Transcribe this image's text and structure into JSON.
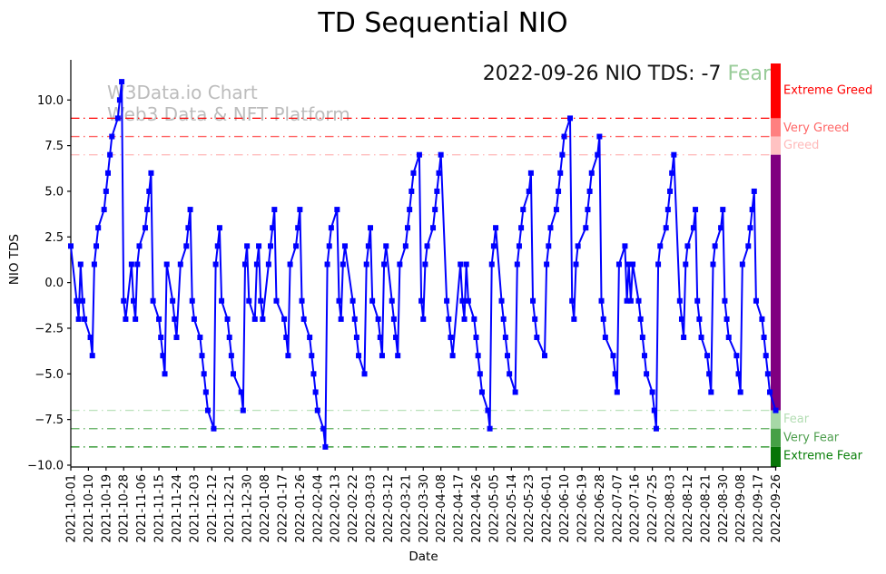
{
  "title": "TD Sequential NIO",
  "watermark": {
    "line1": "W3Data.io Chart",
    "line2": "Web3 Data & NFT Platform"
  },
  "annotation": {
    "prefix": "2022-09-26 NIO TDS: -7",
    "status": "Fear",
    "status_color": "#99cc99"
  },
  "chart_data": {
    "type": "line",
    "title": "TD Sequential NIO",
    "xlabel": "Date",
    "ylabel": "NIO TDS",
    "ylim": [
      -10.1,
      12.0
    ],
    "x_start": "2021-10-01",
    "x_end": "2022-09-26",
    "grid": false,
    "line_color": "#0000ff",
    "marker": "square",
    "y_tick_labels": [
      "10.0",
      "7.5",
      "5.0",
      "2.5",
      "0.0",
      "−2.5",
      "−5.0",
      "−7.5",
      "−10.0"
    ],
    "y_ticks": [
      10,
      7.5,
      5,
      2.5,
      0,
      -2.5,
      -5,
      -7.5,
      -10
    ],
    "x_tick_labels": [
      "2021-10-01",
      "2021-10-10",
      "2021-10-19",
      "2021-10-28",
      "2021-11-06",
      "2021-11-15",
      "2021-11-24",
      "2021-12-03",
      "2021-12-12",
      "2021-12-21",
      "2021-12-30",
      "2022-01-08",
      "2022-01-17",
      "2022-01-26",
      "2022-02-04",
      "2022-02-13",
      "2022-02-22",
      "2022-03-03",
      "2022-03-12",
      "2022-03-21",
      "2022-03-30",
      "2022-04-08",
      "2022-04-17",
      "2022-04-26",
      "2022-05-05",
      "2022-05-14",
      "2022-05-23",
      "2022-06-01",
      "2022-06-10",
      "2022-06-19",
      "2022-06-28",
      "2022-07-07",
      "2022-07-16",
      "2022-07-25",
      "2022-08-03",
      "2022-08-12",
      "2022-08-21",
      "2022-08-30",
      "2022-09-08",
      "2022-09-17",
      "2022-09-26"
    ],
    "zones": [
      {
        "value": 9,
        "label": "Extreme Greed",
        "label_value": 10.55,
        "line_color": "#ff0000",
        "text_color": "#ff0000"
      },
      {
        "value": 8,
        "label": "Very Greed",
        "label_value": 8.5,
        "line_color": "#ff6666",
        "text_color": "#ff6666"
      },
      {
        "value": 7,
        "label": "Greed",
        "label_value": 7.55,
        "line_color": "#ffbdbd",
        "text_color": "#ffb9b9"
      },
      {
        "value": -7,
        "label": "Fear",
        "label_value": -7.45,
        "line_color": "#bfe3bf",
        "text_color": "#b3ddb3"
      },
      {
        "value": -8,
        "label": "Very Fear",
        "label_value": -8.45,
        "line_color": "#5fae5f",
        "text_color": "#4d9e4d"
      },
      {
        "value": -9,
        "label": "Extreme Fear",
        "label_value": -9.45,
        "line_color": "#178a17",
        "text_color": "#0a800a"
      }
    ],
    "colorbar_segments": [
      {
        "from": 12.0,
        "to": 9,
        "color": "#ff0000"
      },
      {
        "from": 9,
        "to": 8,
        "color": "#ff8080"
      },
      {
        "from": 8,
        "to": 7,
        "color": "#ffc2c2"
      },
      {
        "from": 7,
        "to": -7,
        "color": "#800080"
      },
      {
        "from": -7,
        "to": -8,
        "color": "#a6d8a6"
      },
      {
        "from": -8,
        "to": -9,
        "color": "#46a046"
      },
      {
        "from": -9,
        "to": -10.1,
        "color": "#077507"
      }
    ],
    "series": [
      {
        "name": "NIO TDS",
        "dates": [
          "2021-10-01",
          "2021-10-04",
          "2021-10-05",
          "2021-10-06",
          "2021-10-07",
          "2021-10-08",
          "2021-10-11",
          "2021-10-12",
          "2021-10-13",
          "2021-10-14",
          "2021-10-15",
          "2021-10-18",
          "2021-10-19",
          "2021-10-20",
          "2021-10-21",
          "2021-10-22",
          "2021-10-25",
          "2021-10-26",
          "2021-10-27",
          "2021-10-28",
          "2021-10-29",
          "2021-11-01",
          "2021-11-02",
          "2021-11-03",
          "2021-11-04",
          "2021-11-05",
          "2021-11-08",
          "2021-11-09",
          "2021-11-10",
          "2021-11-11",
          "2021-11-12",
          "2021-11-15",
          "2021-11-16",
          "2021-11-17",
          "2021-11-18",
          "2021-11-19",
          "2021-11-22",
          "2021-11-23",
          "2021-11-24",
          "2021-11-26",
          "2021-11-29",
          "2021-11-30",
          "2021-12-01",
          "2021-12-02",
          "2021-12-03",
          "2021-12-06",
          "2021-12-07",
          "2021-12-08",
          "2021-12-09",
          "2021-12-10",
          "2021-12-13",
          "2021-12-14",
          "2021-12-15",
          "2021-12-16",
          "2021-12-17",
          "2021-12-20",
          "2021-12-21",
          "2021-12-22",
          "2021-12-23",
          "2021-12-27",
          "2021-12-28",
          "2021-12-29",
          "2021-12-30",
          "2021-12-31",
          "2022-01-03",
          "2022-01-04",
          "2022-01-05",
          "2022-01-06",
          "2022-01-07",
          "2022-01-10",
          "2022-01-11",
          "2022-01-12",
          "2022-01-13",
          "2022-01-14",
          "2022-01-18",
          "2022-01-19",
          "2022-01-20",
          "2022-01-21",
          "2022-01-24",
          "2022-01-25",
          "2022-01-26",
          "2022-01-27",
          "2022-01-28",
          "2022-01-31",
          "2022-02-01",
          "2022-02-02",
          "2022-02-03",
          "2022-02-04",
          "2022-02-07",
          "2022-02-08",
          "2022-02-09",
          "2022-02-10",
          "2022-02-11",
          "2022-02-14",
          "2022-02-15",
          "2022-02-16",
          "2022-02-17",
          "2022-02-18",
          "2022-02-22",
          "2022-02-23",
          "2022-02-24",
          "2022-02-25",
          "2022-02-28",
          "2022-03-01",
          "2022-03-02",
          "2022-03-03",
          "2022-03-04",
          "2022-03-07",
          "2022-03-08",
          "2022-03-09",
          "2022-03-10",
          "2022-03-11",
          "2022-03-14",
          "2022-03-15",
          "2022-03-16",
          "2022-03-17",
          "2022-03-18",
          "2022-03-21",
          "2022-03-22",
          "2022-03-23",
          "2022-03-24",
          "2022-03-25",
          "2022-03-28",
          "2022-03-29",
          "2022-03-30",
          "2022-03-31",
          "2022-04-01",
          "2022-04-04",
          "2022-04-05",
          "2022-04-06",
          "2022-04-07",
          "2022-04-08",
          "2022-04-11",
          "2022-04-12",
          "2022-04-13",
          "2022-04-14",
          "2022-04-18",
          "2022-04-19",
          "2022-04-20",
          "2022-04-21",
          "2022-04-22",
          "2022-04-25",
          "2022-04-26",
          "2022-04-27",
          "2022-04-28",
          "2022-04-29",
          "2022-05-02",
          "2022-05-03",
          "2022-05-04",
          "2022-05-05",
          "2022-05-06",
          "2022-05-09",
          "2022-05-10",
          "2022-05-11",
          "2022-05-12",
          "2022-05-13",
          "2022-05-16",
          "2022-05-17",
          "2022-05-18",
          "2022-05-19",
          "2022-05-20",
          "2022-05-23",
          "2022-05-24",
          "2022-05-25",
          "2022-05-26",
          "2022-05-27",
          "2022-05-31",
          "2022-06-01",
          "2022-06-02",
          "2022-06-03",
          "2022-06-06",
          "2022-06-07",
          "2022-06-08",
          "2022-06-09",
          "2022-06-10",
          "2022-06-13",
          "2022-06-14",
          "2022-06-15",
          "2022-06-16",
          "2022-06-17",
          "2022-06-21",
          "2022-06-22",
          "2022-06-23",
          "2022-06-24",
          "2022-06-27",
          "2022-06-28",
          "2022-06-29",
          "2022-06-30",
          "2022-07-01",
          "2022-07-05",
          "2022-07-06",
          "2022-07-07",
          "2022-07-08",
          "2022-07-11",
          "2022-07-12",
          "2022-07-13",
          "2022-07-14",
          "2022-07-15",
          "2022-07-18",
          "2022-07-19",
          "2022-07-20",
          "2022-07-21",
          "2022-07-22",
          "2022-07-25",
          "2022-07-26",
          "2022-07-27",
          "2022-07-28",
          "2022-07-29",
          "2022-08-01",
          "2022-08-02",
          "2022-08-03",
          "2022-08-04",
          "2022-08-05",
          "2022-08-08",
          "2022-08-09",
          "2022-08-10",
          "2022-08-11",
          "2022-08-12",
          "2022-08-15",
          "2022-08-16",
          "2022-08-17",
          "2022-08-18",
          "2022-08-19",
          "2022-08-22",
          "2022-08-23",
          "2022-08-24",
          "2022-08-25",
          "2022-08-26",
          "2022-08-29",
          "2022-08-30",
          "2022-08-31",
          "2022-09-01",
          "2022-09-02",
          "2022-09-06",
          "2022-09-07",
          "2022-09-08",
          "2022-09-09",
          "2022-09-12",
          "2022-09-13",
          "2022-09-14",
          "2022-09-15",
          "2022-09-16",
          "2022-09-19",
          "2022-09-20",
          "2022-09-21",
          "2022-09-22",
          "2022-09-23",
          "2022-09-26"
        ],
        "values": [
          2,
          -1,
          -2,
          1,
          -1,
          -2,
          -3,
          -4,
          1,
          2,
          3,
          4,
          5,
          6,
          7,
          8,
          9,
          10,
          11,
          -1,
          -2,
          1,
          -1,
          -2,
          1,
          2,
          3,
          4,
          5,
          6,
          -1,
          -2,
          -3,
          -4,
          -5,
          1,
          -1,
          -2,
          -3,
          1,
          2,
          3,
          4,
          -1,
          -2,
          -3,
          -4,
          -5,
          -6,
          -7,
          -8,
          1,
          2,
          3,
          -1,
          -2,
          -3,
          -4,
          -5,
          -6,
          -7,
          1,
          2,
          -1,
          -2,
          1,
          2,
          -1,
          -2,
          1,
          2,
          3,
          4,
          -1,
          -2,
          -3,
          -4,
          1,
          2,
          3,
          4,
          -1,
          -2,
          -3,
          -4,
          -5,
          -6,
          -7,
          -8,
          -9,
          1,
          2,
          3,
          4,
          -1,
          -2,
          1,
          2,
          -1,
          -2,
          -3,
          -4,
          -5,
          1,
          2,
          3,
          -1,
          -2,
          -3,
          -4,
          1,
          2,
          -1,
          -2,
          -3,
          -4,
          1,
          2,
          3,
          4,
          5,
          6,
          7,
          -1,
          -2,
          1,
          2,
          3,
          4,
          5,
          6,
          7,
          -1,
          -2,
          -3,
          -4,
          1,
          -1,
          -2,
          1,
          -1,
          -2,
          -3,
          -4,
          -5,
          -6,
          -7,
          -8,
          1,
          2,
          3,
          -1,
          -2,
          -3,
          -4,
          -5,
          -6,
          1,
          2,
          3,
          4,
          5,
          6,
          -1,
          -2,
          -3,
          -4,
          1,
          2,
          3,
          4,
          5,
          6,
          7,
          8,
          9,
          -1,
          -2,
          1,
          2,
          3,
          4,
          5,
          6,
          7,
          8,
          -1,
          -2,
          -3,
          -4,
          -5,
          -6,
          1,
          2,
          -1,
          1,
          -1,
          1,
          -1,
          -2,
          -3,
          -4,
          -5,
          -6,
          -7,
          -8,
          1,
          2,
          3,
          4,
          5,
          6,
          7,
          -1,
          -2,
          -3,
          1,
          2,
          3,
          4,
          -1,
          -2,
          -3,
          -4,
          -5,
          -6,
          1,
          2,
          3,
          4,
          -1,
          -2,
          -3,
          -4,
          -5,
          -6,
          1,
          2,
          3,
          4,
          5,
          -1,
          -2,
          -3,
          -4,
          -5,
          -6,
          -7
        ]
      }
    ]
  }
}
